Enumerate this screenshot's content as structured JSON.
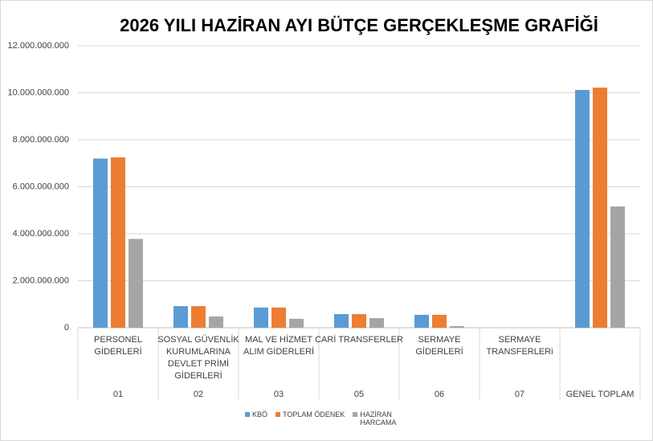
{
  "chart_data": {
    "type": "bar",
    "title": "2026 YILI HAZİRAN AYI BÜTÇE GERÇEKLEŞME GRAFİĞİ",
    "categories": [
      "01",
      "02",
      "03",
      "05",
      "06",
      "07",
      "GENEL TOPLAM"
    ],
    "category_names": [
      [
        "PERSONEL",
        "GİDERLERİ"
      ],
      [
        "SOSYAL GÜVENLİK",
        "KURUMLARINA",
        "DEVLET PRİMİ",
        "GİDERLERİ"
      ],
      [
        "MAL VE HİZMET",
        "ALIM GİDERLERİ"
      ],
      [
        "CARİ TRANSFERLER"
      ],
      [
        "SERMAYE",
        "GİDERLERİ"
      ],
      [
        "SERMAYE",
        "TRANSFERLERi"
      ],
      null
    ],
    "series": [
      {
        "name": "KBÖ",
        "color": "#5b9bd5",
        "values": [
          7200000000,
          920000000,
          860000000,
          580000000,
          550000000,
          0,
          10120000000
        ]
      },
      {
        "name": "TOPLAM ÖDENEK",
        "color": "#ed7d31",
        "values": [
          7250000000,
          920000000,
          860000000,
          580000000,
          550000000,
          0,
          10220000000
        ]
      },
      {
        "name": "HAZİRAN HARCAMA",
        "color": "#a5a5a5",
        "values": [
          3780000000,
          480000000,
          380000000,
          410000000,
          70000000,
          0,
          5160000000
        ]
      }
    ],
    "ylim": [
      0,
      12000000000
    ],
    "yticks": [
      0,
      {
        "value": 2000000000,
        "label": "2.000.000.000"
      },
      {
        "value": 4000000000,
        "label": "4.000.000.000"
      },
      {
        "value": 6000000000,
        "label": "6.000.000.000"
      },
      {
        "value": 8000000000,
        "label": "8.000.000.000"
      },
      {
        "value": 10000000000,
        "label": "10.000.000.000"
      },
      {
        "value": 12000000000,
        "label": "12.000.000.000"
      }
    ],
    "grid": true,
    "legend": "bottom"
  }
}
